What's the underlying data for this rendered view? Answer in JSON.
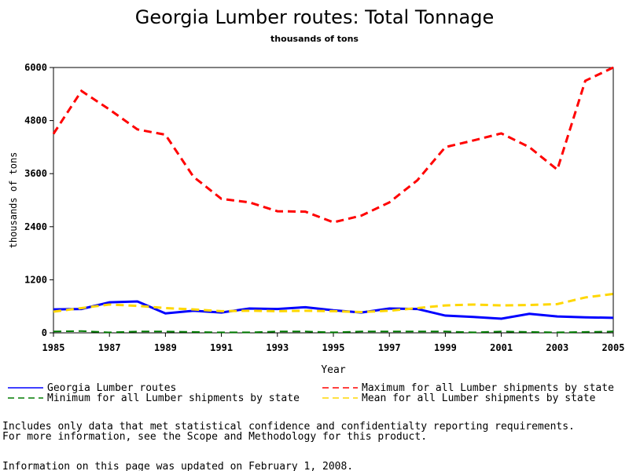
{
  "chart_data": {
    "type": "line",
    "title": "Georgia Lumber routes: Total Tonnage",
    "subtitle": "thousands of tons",
    "y_label": "thousands of tons",
    "x_label": "Year",
    "x": [
      1985,
      1986,
      1987,
      1988,
      1989,
      1990,
      1991,
      1992,
      1993,
      1994,
      1995,
      1996,
      1997,
      1998,
      1999,
      2000,
      2001,
      2002,
      2003,
      2004,
      2005
    ],
    "xlim": [
      1985,
      2005
    ],
    "xticks": [
      1985,
      1987,
      1989,
      1991,
      1993,
      1995,
      1997,
      1999,
      2001,
      2003,
      2005
    ],
    "ylim": [
      0,
      6000
    ],
    "yticks": [
      0,
      1200,
      2400,
      3600,
      4800,
      6000
    ],
    "series": [
      {
        "name": "Georgia Lumber routes",
        "color": "#0000ff",
        "dashed": false,
        "values": [
          530,
          540,
          690,
          710,
          440,
          500,
          460,
          550,
          540,
          580,
          510,
          460,
          550,
          540,
          390,
          360,
          320,
          430,
          370,
          350,
          340
        ]
      },
      {
        "name": "Maximum for all Lumber shipments by state",
        "color": "#ff0000",
        "dashed": true,
        "values": [
          4500,
          5470,
          5050,
          4600,
          4480,
          3530,
          3030,
          2950,
          2750,
          2740,
          2500,
          2650,
          2950,
          3450,
          4200,
          4350,
          4510,
          4200,
          3690,
          5700,
          6000
        ]
      },
      {
        "name": "Minimum for all Lumber shipments by state",
        "color": "#007a00",
        "dashed": true,
        "values": [
          30,
          40,
          10,
          30,
          30,
          20,
          10,
          10,
          30,
          30,
          10,
          30,
          30,
          30,
          30,
          10,
          30,
          20,
          10,
          20,
          30
        ]
      },
      {
        "name": "Mean for all Lumber shipments by state",
        "color": "#ffd700",
        "dashed": true,
        "values": [
          480,
          560,
          640,
          610,
          560,
          530,
          490,
          500,
          490,
          500,
          490,
          470,
          500,
          560,
          620,
          640,
          620,
          630,
          650,
          800,
          880
        ]
      }
    ]
  },
  "footnotes": [
    "Includes only data that met statistical confidence and confidentialty reporting requirements.",
    "For more information, see the Scope and Methodology for this product.",
    "Information on this page was updated on February 1, 2008."
  ]
}
